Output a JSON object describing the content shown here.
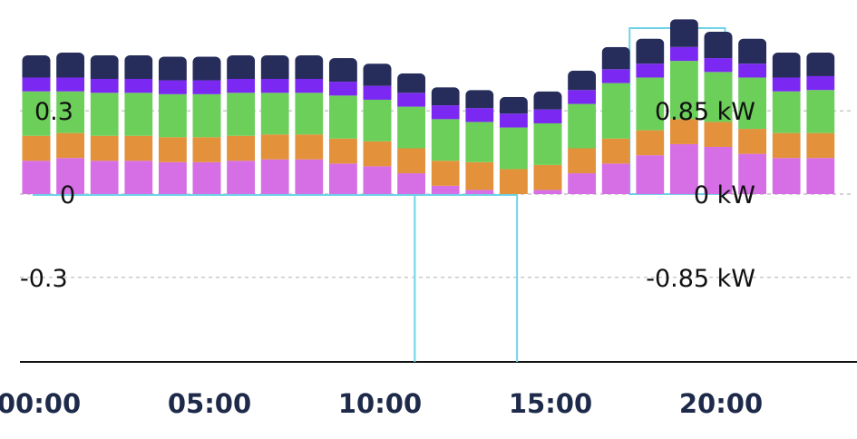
{
  "chart_data": {
    "type": "bar",
    "stacked": true,
    "x_unit": "hour of day",
    "x_ticks": [
      "00:00",
      "05:00",
      "10:00",
      "15:00",
      "20:00"
    ],
    "x_tick_hours": [
      0,
      5,
      10,
      15,
      20
    ],
    "hours": [
      0,
      1,
      2,
      3,
      4,
      5,
      6,
      7,
      8,
      9,
      10,
      11,
      12,
      13,
      14,
      15,
      16,
      17,
      18,
      19,
      20,
      21,
      22,
      23
    ],
    "y_left": {
      "ticks": [
        "0.3",
        "0",
        "-0.3"
      ],
      "tick_values": [
        0.3,
        0,
        -0.3
      ],
      "range": [
        -0.6,
        0.52
      ]
    },
    "y_right": {
      "ticks": [
        "0.85 kW",
        "0 kW",
        "-0.85 kW"
      ],
      "tick_values": [
        0.85,
        0,
        -0.85
      ]
    },
    "grid": true,
    "series": [
      {
        "color": "#d66ee6",
        "values": [
          0.12,
          0.13,
          0.12,
          0.12,
          0.115,
          0.115,
          0.12,
          0.125,
          0.125,
          0.11,
          0.1,
          0.075,
          0.03,
          0.015,
          0.0,
          0.015,
          0.075,
          0.11,
          0.14,
          0.18,
          0.17,
          0.145,
          0.13,
          0.13
        ]
      },
      {
        "color": "#e3913a",
        "values": [
          0.09,
          0.09,
          0.09,
          0.09,
          0.09,
          0.09,
          0.09,
          0.09,
          0.09,
          0.09,
          0.09,
          0.09,
          0.09,
          0.1,
          0.09,
          0.09,
          0.09,
          0.09,
          0.09,
          0.09,
          0.09,
          0.09,
          0.09,
          0.09
        ]
      },
      {
        "color": "#6ccf5a",
        "values": [
          0.16,
          0.15,
          0.155,
          0.155,
          0.155,
          0.155,
          0.155,
          0.15,
          0.15,
          0.155,
          0.15,
          0.15,
          0.15,
          0.145,
          0.15,
          0.15,
          0.16,
          0.2,
          0.19,
          0.21,
          0.18,
          0.185,
          0.15,
          0.155
        ]
      },
      {
        "color": "#7b29f2",
        "values": [
          0.05,
          0.05,
          0.05,
          0.05,
          0.05,
          0.05,
          0.05,
          0.05,
          0.05,
          0.05,
          0.05,
          0.05,
          0.05,
          0.05,
          0.05,
          0.05,
          0.05,
          0.05,
          0.05,
          0.05,
          0.05,
          0.05,
          0.05,
          0.05
        ]
      },
      {
        "color": "#262d5b",
        "values": [
          0.08,
          0.09,
          0.085,
          0.085,
          0.085,
          0.085,
          0.085,
          0.085,
          0.085,
          0.085,
          0.08,
          0.07,
          0.065,
          0.065,
          0.06,
          0.065,
          0.07,
          0.08,
          0.09,
          0.1,
          0.095,
          0.09,
          0.09,
          0.085
        ]
      }
    ],
    "markers": {
      "color": "#6fd3e8",
      "vertical_lines_hours": [
        11.1,
        14.1
      ],
      "highlight_hours": [
        17.4,
        20.2
      ]
    }
  }
}
